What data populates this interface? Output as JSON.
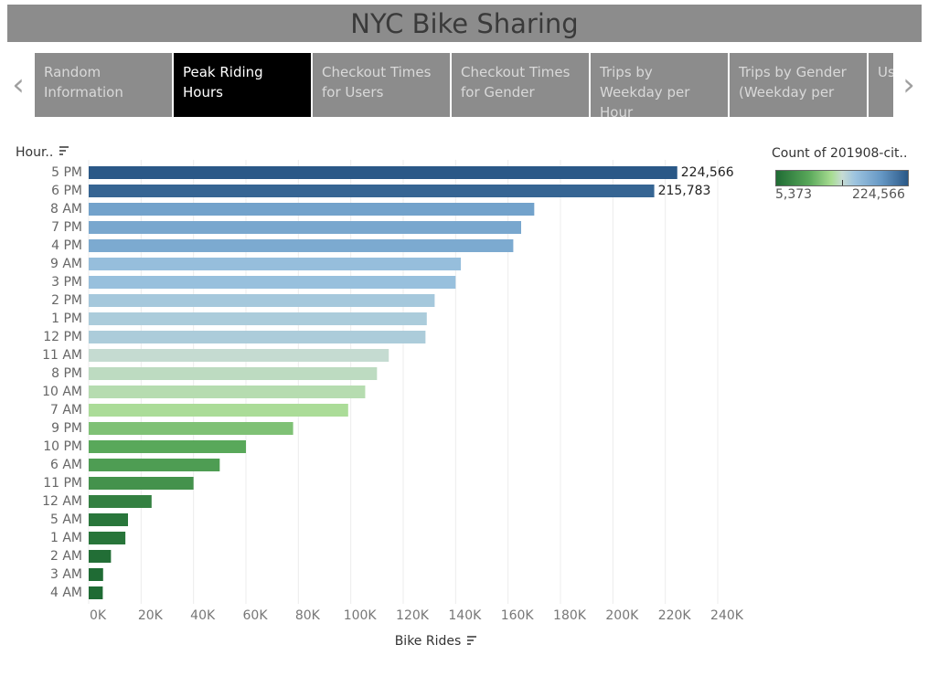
{
  "header": {
    "title": "NYC Bike Sharing"
  },
  "nav": {
    "left_glyph": "‹",
    "right_glyph": "›"
  },
  "tabs": [
    {
      "label": "Random Information",
      "active": false
    },
    {
      "label": "Peak Riding Hours",
      "active": true
    },
    {
      "label": "Checkout Times for Users",
      "active": false
    },
    {
      "label": "Checkout Times for Gender",
      "active": false
    },
    {
      "label": "Trips by Weekday per Hour",
      "active": false
    },
    {
      "label": "Trips by Gender (Weekday per",
      "active": false
    },
    {
      "label": "Us Ge",
      "active": false
    }
  ],
  "legend": {
    "title": "Count of 201908-cit..",
    "min_label": "5,373",
    "max_label": "224,566",
    "min": 5373,
    "max": 224566
  },
  "colors": {
    "low": "#1f6b34",
    "mid": "#c6dbd3",
    "high": "#2a5887",
    "tab_bg": "#8c8c8c",
    "tab_active": "#000000"
  },
  "chart_data": {
    "type": "bar",
    "orientation": "horizontal",
    "ylabel": "Hour..",
    "xlabel": "Bike Rides",
    "xlim": [
      0,
      240000
    ],
    "xticks": [
      0,
      20000,
      40000,
      60000,
      80000,
      100000,
      120000,
      140000,
      160000,
      180000,
      200000,
      220000,
      240000
    ],
    "xtick_labels": [
      "0K",
      "20K",
      "40K",
      "60K",
      "80K",
      "100K",
      "120K",
      "140K",
      "160K",
      "180K",
      "200K",
      "220K",
      "240K"
    ],
    "grid": "vertical",
    "categories": [
      "5 PM",
      "6 PM",
      "8 AM",
      "7 PM",
      "4 PM",
      "9 AM",
      "3 PM",
      "2 PM",
      "1 PM",
      "12 PM",
      "11 AM",
      "8 PM",
      "10 AM",
      "7 AM",
      "9 PM",
      "10 PM",
      "6 AM",
      "11 PM",
      "12 AM",
      "5 AM",
      "1 AM",
      "2 AM",
      "3 AM",
      "4 AM"
    ],
    "values": [
      224566,
      215783,
      170000,
      165000,
      162000,
      142000,
      140000,
      132000,
      129000,
      128500,
      114500,
      110000,
      105500,
      99000,
      78000,
      60000,
      50000,
      40000,
      24000,
      15000,
      14000,
      8500,
      5500,
      5373
    ],
    "data_labels": [
      {
        "category": "5 PM",
        "text": "224,566"
      },
      {
        "category": "6 PM",
        "text": "215,783"
      }
    ]
  }
}
